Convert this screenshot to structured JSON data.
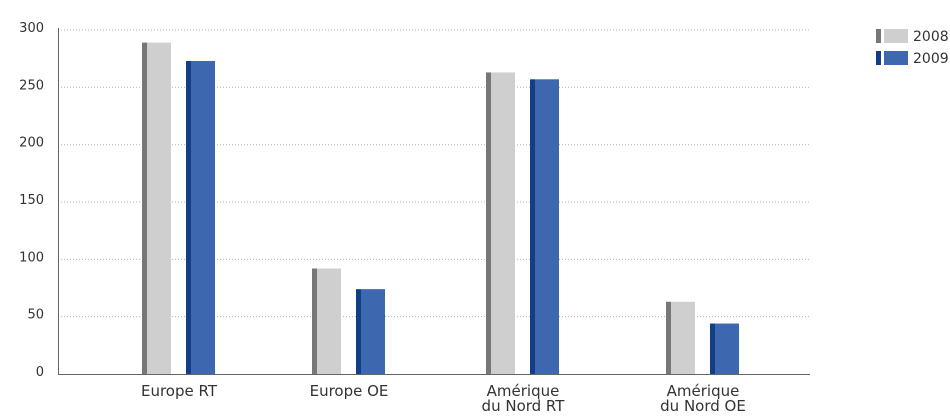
{
  "chart_data": {
    "type": "bar",
    "title": "",
    "xlabel": "",
    "ylabel": "",
    "categories": [
      [
        "Europe RT"
      ],
      [
        "Europe OE"
      ],
      [
        "Amérique",
        "du Nord RT"
      ],
      [
        "Amérique",
        "du Nord OE"
      ]
    ],
    "series": [
      {
        "name": "2008",
        "values": [
          289,
          92,
          263,
          63
        ],
        "color": "#cfcfcf",
        "edge_color": "#777777"
      },
      {
        "name": "2009",
        "values": [
          273,
          74,
          257,
          44
        ],
        "color": "#3d68b0",
        "edge_color": "#123f84"
      }
    ],
    "ylim": [
      0,
      300
    ],
    "yticks": [
      0,
      50,
      100,
      150,
      200,
      250,
      300
    ],
    "grid": true,
    "legend_position": "top-right"
  }
}
